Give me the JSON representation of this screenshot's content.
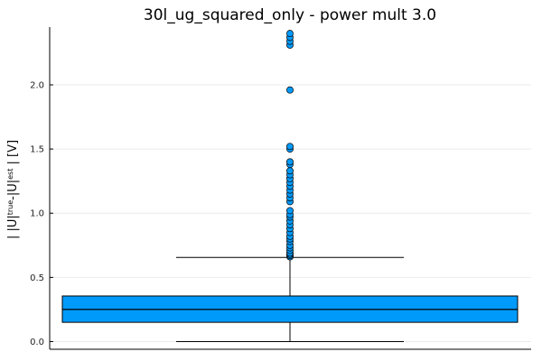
{
  "chart_data": {
    "type": "box",
    "title": "30l_ug_squared_only - power mult 3.0",
    "xlabel": "",
    "ylabel": {
      "parts": [
        {
          "text": "| |U|",
          "sup": false
        },
        {
          "text": "true",
          "sup": true
        },
        {
          "text": "-|U|",
          "sup": false
        },
        {
          "text": "est",
          "sup": true
        },
        {
          "text": " | [V]",
          "sup": false
        }
      ]
    },
    "ylim": [
      -0.06,
      2.45
    ],
    "yticks": [
      0.0,
      0.5,
      1.0,
      1.5,
      2.0
    ],
    "ytick_labels": [
      "0.0",
      "0.5",
      "1.0",
      "1.5",
      "2.0"
    ],
    "grid": true,
    "legend": "none",
    "box": {
      "color": "#009AFA",
      "whisker_low": 0.0,
      "q1": 0.15,
      "median": 0.25,
      "q3": 0.355,
      "whisker_high": 0.655
    },
    "outliers": [
      0.66,
      0.67,
      0.68,
      0.69,
      0.71,
      0.73,
      0.75,
      0.78,
      0.8,
      0.82,
      0.85,
      0.88,
      0.91,
      0.94,
      0.97,
      0.99,
      1.02,
      1.09,
      1.12,
      1.15,
      1.18,
      1.21,
      1.24,
      1.27,
      1.3,
      1.33,
      1.38,
      1.4,
      1.5,
      1.52,
      1.96,
      2.31,
      2.34,
      2.37,
      2.4
    ]
  }
}
